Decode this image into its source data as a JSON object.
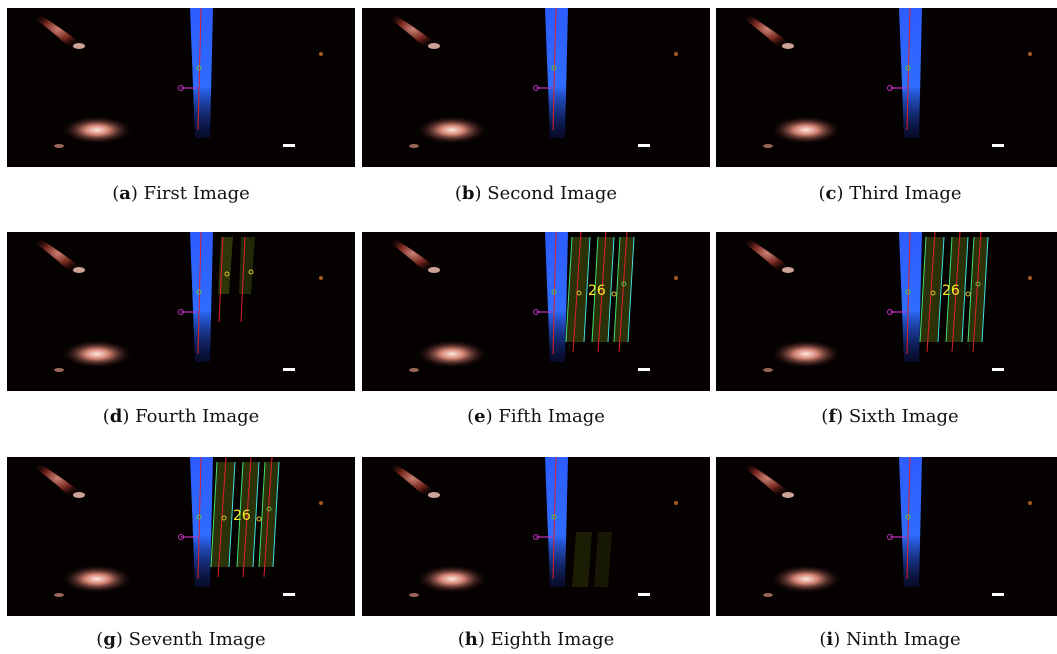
{
  "panels": [
    {
      "letter": "a",
      "title": "First Image",
      "overlay": "none",
      "count": ""
    },
    {
      "letter": "b",
      "title": "Second Image",
      "overlay": "none",
      "count": ""
    },
    {
      "letter": "c",
      "title": "Third Image",
      "overlay": "none",
      "count": ""
    },
    {
      "letter": "d",
      "title": "Fourth Image",
      "overlay": "partial",
      "count": ""
    },
    {
      "letter": "e",
      "title": "Fifth Image",
      "overlay": "full",
      "count": "26"
    },
    {
      "letter": "f",
      "title": "Sixth Image",
      "overlay": "full",
      "count": "26"
    },
    {
      "letter": "g",
      "title": "Seventh Image",
      "overlay": "full",
      "count": "26"
    },
    {
      "letter": "h",
      "title": "Eighth Image",
      "overlay": "faint",
      "count": ""
    },
    {
      "letter": "i",
      "title": "Ninth Image",
      "overlay": "none",
      "count": ""
    }
  ],
  "colors": {
    "background": "#050101",
    "blue_strip": "#2f6cff",
    "marker_line": "#e0202a",
    "magenta_marker": "#c030c0",
    "green_line": "#40e070",
    "cyan_line": "#40e0e0",
    "count_text": "#ffee22"
  }
}
